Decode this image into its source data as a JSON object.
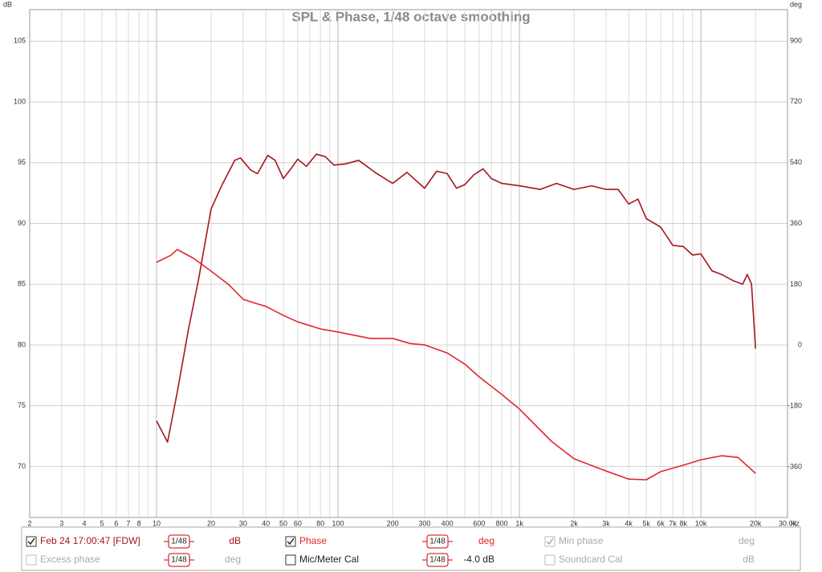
{
  "chart_data": {
    "type": "line",
    "title": "SPL & Phase, 1/48 octave smoothing",
    "y_unit": "dB",
    "y2_unit": "deg",
    "x_unit": "Hz",
    "xscale": "log",
    "grid": true,
    "xlim": [
      2,
      30000
    ],
    "xticks": [
      2,
      3,
      4,
      5,
      6,
      7,
      8,
      10,
      20,
      30,
      40,
      50,
      60,
      80,
      100,
      200,
      300,
      400,
      600,
      800,
      {
        "value": 1000,
        "label": "1k"
      },
      {
        "value": 2000,
        "label": "2k"
      },
      {
        "value": 3000,
        "label": "3k"
      },
      {
        "value": 4000,
        "label": "4k"
      },
      {
        "value": 5000,
        "label": "5k"
      },
      {
        "value": 6000,
        "label": "6k"
      },
      {
        "value": 7000,
        "label": "7k"
      },
      {
        "value": 8000,
        "label": "8k"
      },
      {
        "value": 10000,
        "label": "10k"
      },
      {
        "value": 20000,
        "label": "20k"
      },
      {
        "value": 30000,
        "label": "30.0k"
      }
    ],
    "xminorticks": [
      9,
      70,
      90,
      500,
      700,
      900,
      9000
    ],
    "ylim": [
      65.8,
      107.6
    ],
    "yticks": [
      70,
      75,
      80,
      85,
      90,
      95,
      100,
      105
    ],
    "y2lim": [
      -509.5,
      992.5
    ],
    "y2ticks": [
      -360,
      -180,
      0,
      180,
      360,
      540,
      720,
      900
    ],
    "series": [
      {
        "name": "Feb 24 17:00:47 [FDW]",
        "color": "#a3161e",
        "x": [
          10,
          11.5,
          13,
          15,
          17,
          20,
          23,
          27,
          29,
          33,
          36,
          41,
          45,
          50,
          55,
          60,
          67,
          76,
          85,
          95,
          110,
          130,
          160,
          200,
          240,
          300,
          350,
          400,
          450,
          500,
          560,
          630,
          700,
          800,
          1000,
          1300,
          1600,
          2000,
          2500,
          3000,
          3500,
          4000,
          4500,
          5000,
          6000,
          7000,
          8000,
          9000,
          10000,
          11500,
          13000,
          15000,
          17000,
          18000,
          19000,
          20000
        ],
        "values": [
          73.75,
          72.0,
          76.1,
          81.3,
          85.3,
          91.2,
          93.2,
          95.2,
          95.4,
          94.4,
          94.1,
          95.6,
          95.2,
          93.7,
          94.5,
          95.3,
          94.7,
          95.7,
          95.5,
          94.8,
          94.9,
          95.2,
          94.2,
          93.3,
          94.2,
          92.9,
          94.3,
          94.1,
          92.9,
          93.2,
          94.0,
          94.5,
          93.7,
          93.3,
          93.1,
          92.8,
          93.3,
          92.8,
          93.1,
          92.8,
          92.8,
          91.6,
          92.0,
          90.4,
          89.7,
          88.2,
          88.1,
          87.4,
          87.5,
          86.1,
          85.8,
          85.3,
          85.0,
          85.8,
          85.0,
          79.7
        ]
      },
      {
        "name": "Phase",
        "color": "#e2252d",
        "axis": "y2",
        "x": [
          10,
          12,
          13,
          16,
          20,
          25,
          30,
          35,
          40,
          50,
          60,
          80,
          100,
          150,
          200,
          250,
          300,
          400,
          500,
          600,
          800,
          1000,
          1500,
          2000,
          3000,
          4000,
          5000,
          6000,
          8000,
          10000,
          13000,
          16000,
          20000
        ],
        "values": [
          245,
          266,
          283,
          257,
          219,
          179,
          136,
          124,
          115,
          88,
          69,
          48,
          39,
          20,
          20,
          5,
          1,
          -23,
          -56,
          -94,
          -146,
          -189,
          -284,
          -336,
          -372,
          -396,
          -398,
          -374,
          -355,
          -339,
          -327,
          -332,
          -379
        ]
      }
    ]
  },
  "controls": {
    "smoothing": "1/48",
    "row1": [
      {
        "label": "Feb 24 17:00:47 [FDW]",
        "unit": "dB",
        "checked": true
      },
      {
        "label": "Phase",
        "unit": "deg",
        "checked": true
      },
      {
        "label": "Min phase",
        "unit": "deg",
        "checked": true
      }
    ],
    "row2": [
      {
        "label": "Excess phase",
        "unit": "deg",
        "checked": false
      },
      {
        "label": "Mic/Meter Cal",
        "unit": "-4.0 dB",
        "checked": false
      },
      {
        "label": "Soundcard Cal",
        "unit": "dB",
        "checked": false
      }
    ]
  }
}
